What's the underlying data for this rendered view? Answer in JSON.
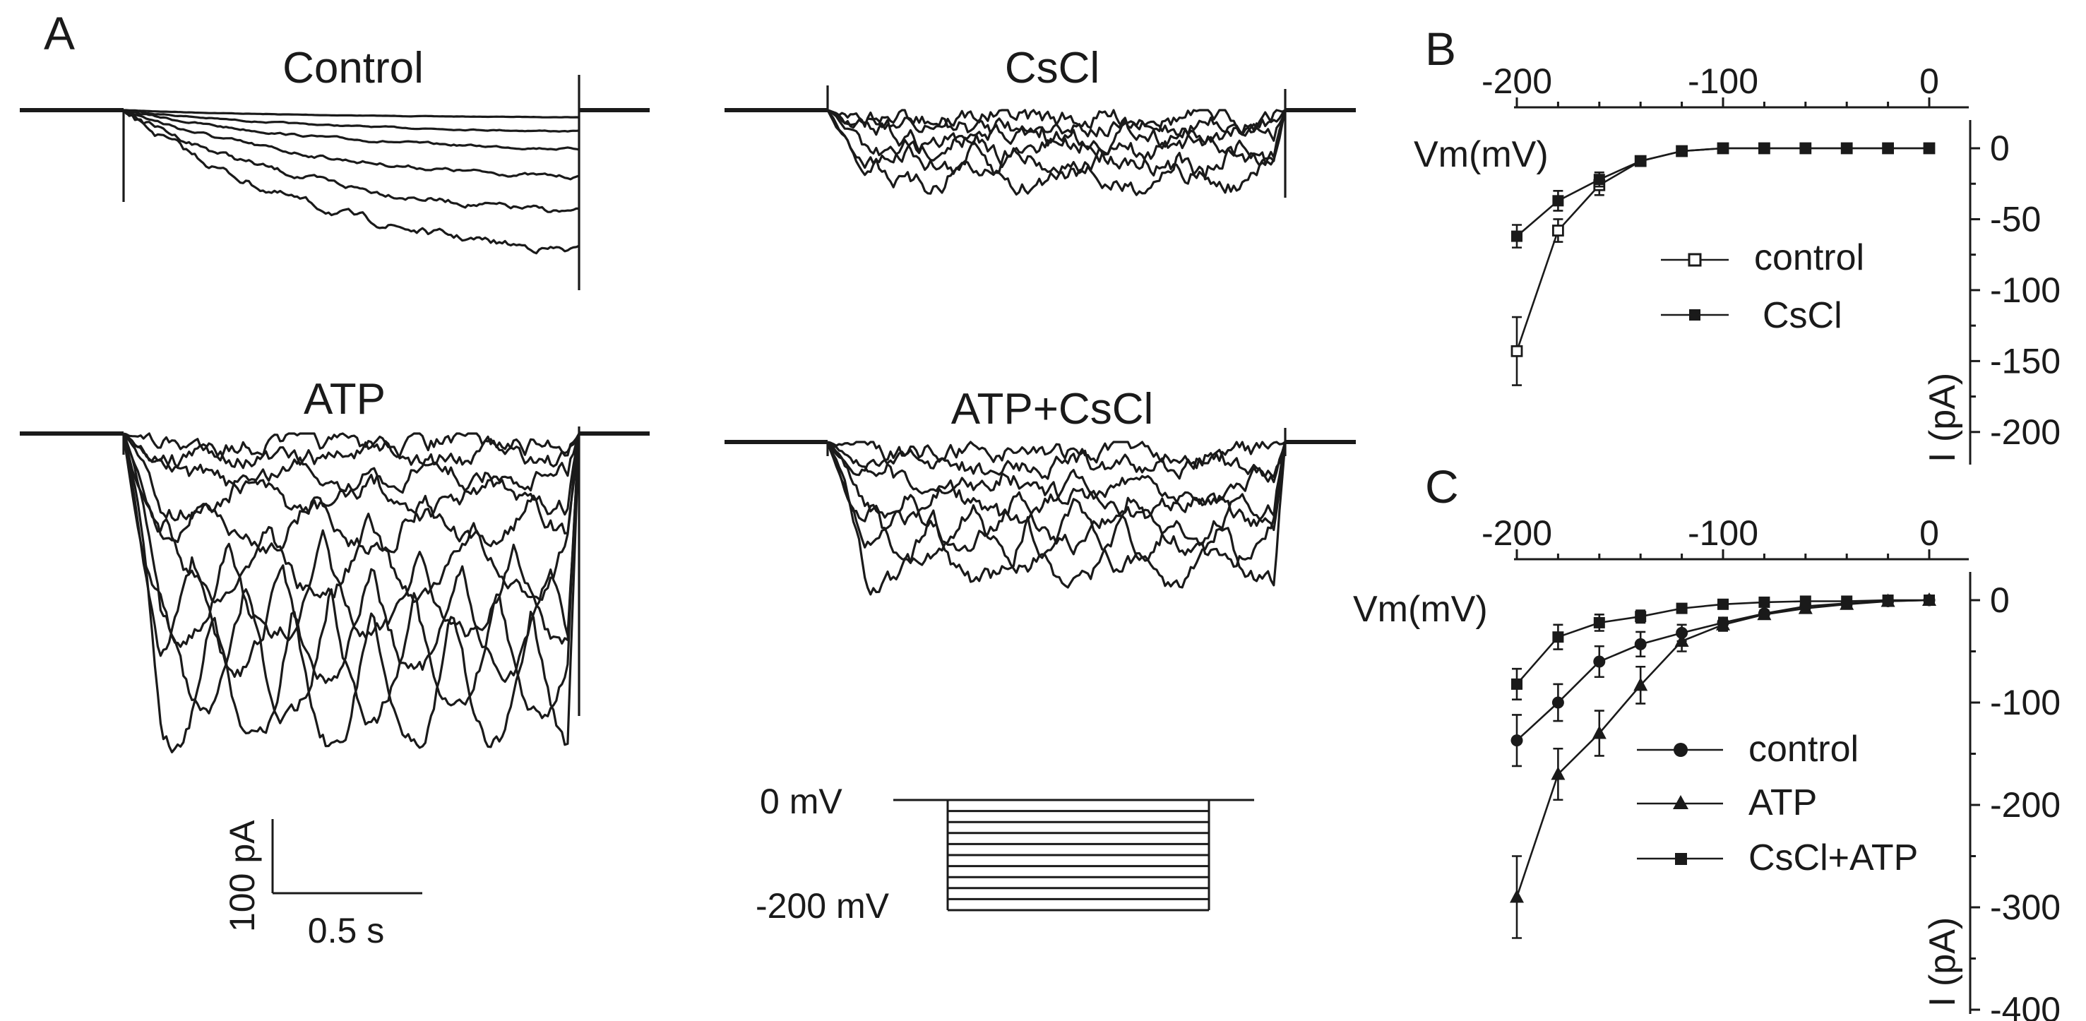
{
  "figure": {
    "panel_labels": {
      "a": "A",
      "b": "B",
      "c": "C"
    },
    "traces": {
      "control": "Control",
      "cscl": "CsCl",
      "atp": "ATP",
      "atp_cscl": "ATP+CsCl"
    },
    "scale_bar": {
      "current": "100 pA",
      "time": "0.5 s"
    },
    "protocol": {
      "top": "0 mV",
      "bottom": "-200 mV",
      "steps": 10
    }
  },
  "chart_data": [
    {
      "panel": "B",
      "type": "line",
      "xlabel": "Vm(mV)",
      "ylabel": "I (pA)",
      "xlim": [
        -200,
        0
      ],
      "ylim": [
        -220,
        0
      ],
      "xticks": [
        -200,
        -100,
        0
      ],
      "yticks": [
        0,
        -50,
        -100,
        -150,
        -200
      ],
      "x": [
        -200,
        -180,
        -160,
        -140,
        -120,
        -100,
        -80,
        -60,
        -40,
        -20,
        0
      ],
      "series": [
        {
          "name": "control",
          "marker": "square-open",
          "values": [
            -143,
            -58,
            -26,
            -9,
            -2,
            0,
            0,
            0,
            0,
            0,
            0
          ],
          "errors": [
            24,
            8,
            7,
            2,
            1,
            0,
            0,
            0,
            0,
            0,
            0
          ]
        },
        {
          "name": "CsCl",
          "marker": "square-filled",
          "values": [
            -62,
            -37,
            -22,
            -9,
            -2,
            0,
            0,
            0,
            0,
            0,
            0
          ],
          "errors": [
            8,
            7,
            5,
            2,
            1,
            0,
            0,
            0,
            0,
            0,
            0
          ]
        }
      ],
      "legend": "center"
    },
    {
      "panel": "C",
      "type": "line",
      "xlabel": "Vm(mV)",
      "ylabel": "I (pA)",
      "xlim": [
        -200,
        0
      ],
      "ylim": [
        -400,
        0
      ],
      "xticks": [
        -200,
        -100,
        0
      ],
      "yticks": [
        0,
        -100,
        -200,
        -300,
        -400
      ],
      "x": [
        -200,
        -180,
        -160,
        -140,
        -120,
        -100,
        -80,
        -60,
        -40,
        -20,
        0
      ],
      "series": [
        {
          "name": "control",
          "marker": "circle-filled",
          "values": [
            -137,
            -100,
            -60,
            -43,
            -32,
            -22,
            -13,
            -6,
            -3,
            -1,
            0
          ],
          "errors": [
            25,
            18,
            15,
            12,
            8,
            5,
            3,
            2,
            1,
            1,
            0
          ]
        },
        {
          "name": "ATP",
          "marker": "triangle-filled",
          "values": [
            -290,
            -170,
            -130,
            -83,
            -40,
            -24,
            -14,
            -8,
            -4,
            -1,
            0
          ],
          "errors": [
            40,
            25,
            22,
            18,
            10,
            6,
            4,
            2,
            1,
            1,
            0
          ]
        },
        {
          "name": "CsCl+ATP",
          "marker": "square-filled",
          "values": [
            -82,
            -36,
            -22,
            -16,
            -8,
            -4,
            -2,
            -1,
            -1,
            0,
            0
          ],
          "errors": [
            15,
            12,
            8,
            6,
            4,
            2,
            1,
            1,
            0,
            0,
            0
          ]
        }
      ],
      "legend": "lower-left"
    }
  ]
}
